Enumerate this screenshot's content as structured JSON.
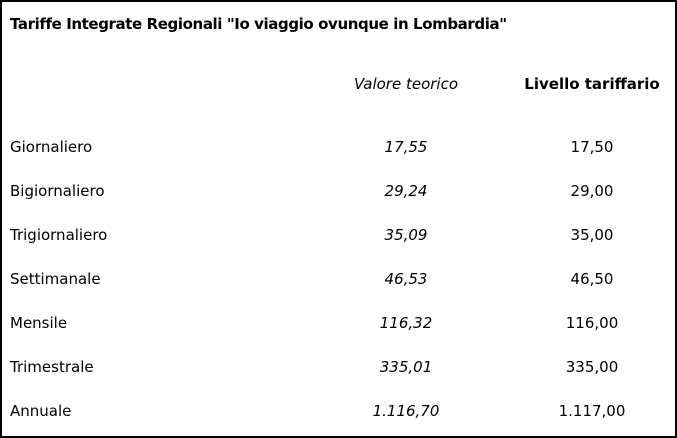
{
  "title": "Tariffe Integrate Regionali \"Io viaggio ovunque in Lombardia\"",
  "table": {
    "columns": [
      "Valore teorico",
      "Livello tariffario"
    ],
    "rows": [
      [
        "Giornaliero",
        "17,55",
        "17,50"
      ],
      [
        "Bigiornaliero",
        "29,24",
        "29,00"
      ],
      [
        "Trigiornaliero",
        "35,09",
        "35,00"
      ],
      [
        "Settimanale",
        "46,53",
        "46,50"
      ],
      [
        "Mensile",
        "116,32",
        "116,00"
      ],
      [
        "Trimestrale",
        "335,01",
        "335,00"
      ],
      [
        "Annuale",
        "1.116,70",
        "1.117,00"
      ]
    ]
  }
}
